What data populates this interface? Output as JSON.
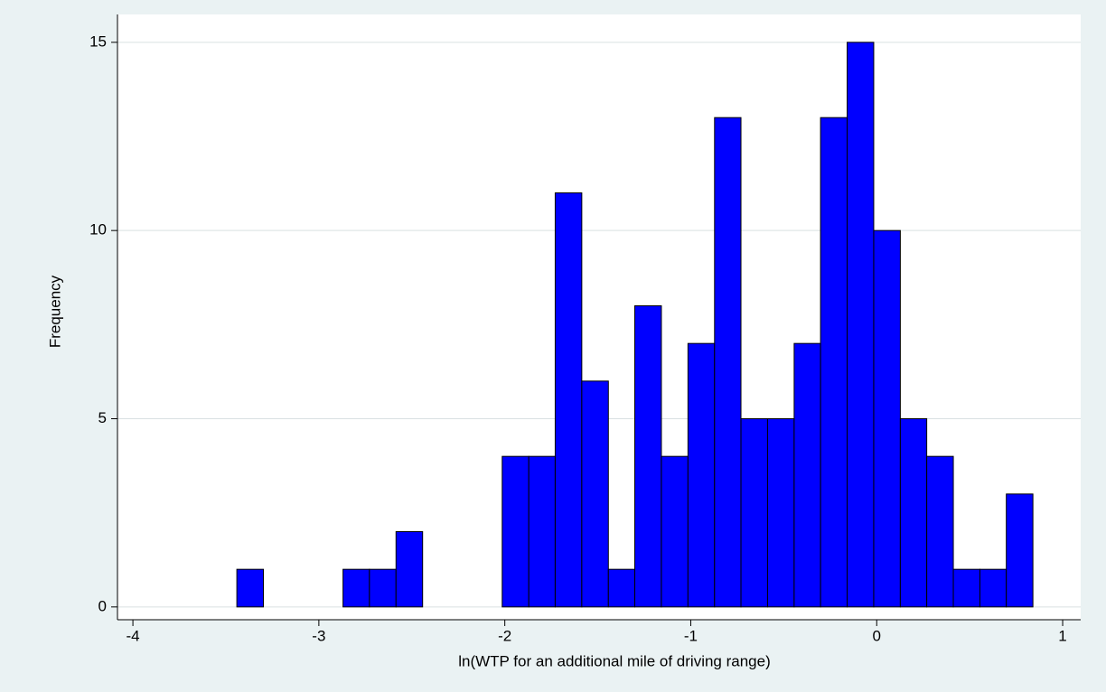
{
  "chart_data": {
    "type": "histogram",
    "x_label": "ln(WTP for an additional mile of driving range)",
    "y_label": "Frequency",
    "bins": [
      -3.441,
      -3.298,
      -3.156,
      -3.013,
      -2.87,
      -2.728,
      -2.585,
      -2.442,
      -2.299,
      -2.157,
      -2.014,
      -1.871,
      -1.729,
      -1.586,
      -1.443,
      -1.301,
      -1.158,
      -1.015,
      -0.872,
      -0.73,
      -0.587,
      -0.444,
      -0.302,
      -0.159,
      -0.016,
      0.127,
      0.269,
      0.412,
      0.555,
      0.697,
      0.84
    ],
    "values": [
      1,
      0,
      0,
      0,
      1,
      1,
      2,
      0,
      0,
      0,
      4,
      4,
      11,
      6,
      1,
      8,
      4,
      7,
      13,
      5,
      5,
      7,
      13,
      15,
      10,
      5,
      4,
      1,
      1,
      3
    ],
    "color": "#0000ff",
    "xlim": [
      -4.083,
      1.097
    ],
    "xticks": [
      -4,
      -3,
      -2,
      -1,
      0,
      1
    ],
    "ylim": [
      -0.34,
      15.74
    ],
    "yticks": [
      0,
      5,
      10,
      15
    ],
    "grid": true
  }
}
